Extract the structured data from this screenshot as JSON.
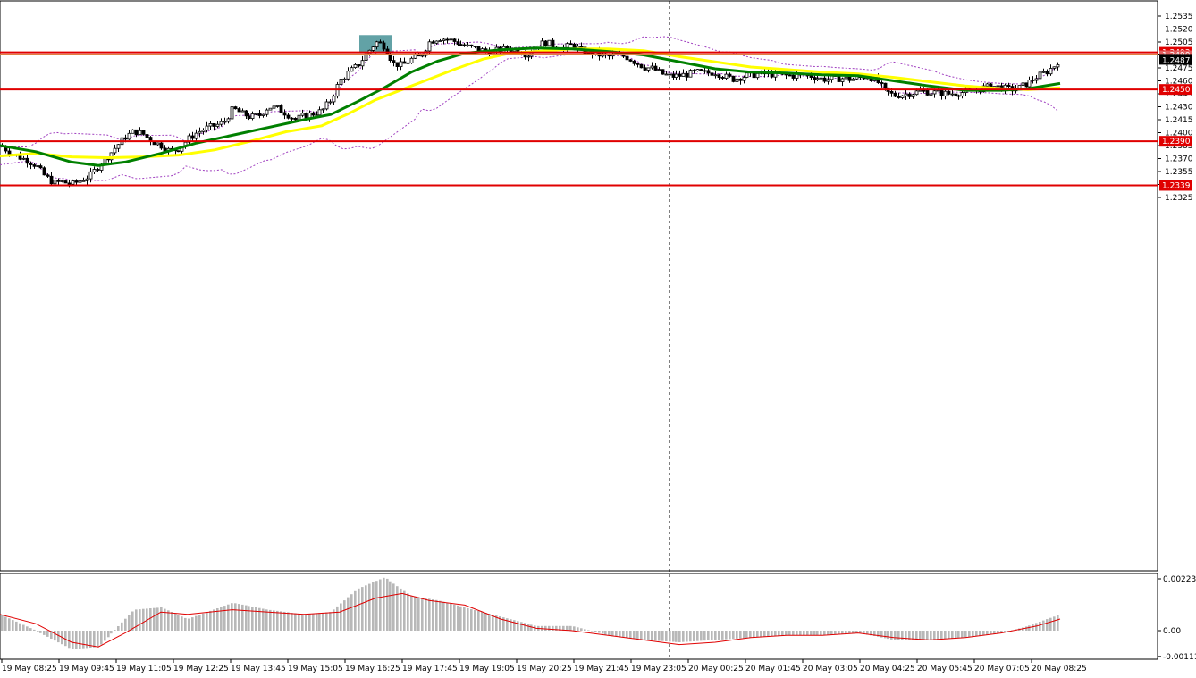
{
  "chart_data": {
    "type": "candlestick",
    "main": {
      "y_ticks": [
        "1.2535",
        "1.2520",
        "1.2505",
        "1.2490",
        "1.2475",
        "1.2460",
        "1.2445",
        "1.2430",
        "1.2415",
        "1.2400",
        "1.2385",
        "1.2370",
        "1.2355",
        "1.2340",
        "1.2325"
      ],
      "price_levels": [
        {
          "value": "1.2493",
          "color": "#e00000"
        },
        {
          "value": "1.2450",
          "color": "#e00000"
        },
        {
          "value": "1.2390",
          "color": "#e00000"
        },
        {
          "value": "1.2339",
          "color": "#e00000"
        }
      ],
      "bid_label": "1.2490",
      "current_price": "1.2487",
      "x_labels": [
        "19 May 08:25",
        "19 May 09:45",
        "19 May 11:05",
        "19 May 12:25",
        "19 May 13:45",
        "19 May 15:05",
        "19 May 16:25",
        "19 May 17:45",
        "19 May 19:05",
        "19 May 20:25",
        "19 May 21:45",
        "19 May 23:05",
        "20 May 00:25",
        "20 May 01:45",
        "20 May 03:05",
        "20 May 04:25",
        "20 May 05:45",
        "20 May 07:05",
        "20 May 08:25"
      ],
      "price_path": [
        [
          0,
          1.2385
        ],
        [
          10,
          1.2378
        ],
        [
          20,
          1.2372
        ],
        [
          30,
          1.2368
        ],
        [
          40,
          1.2362
        ],
        [
          50,
          1.235
        ],
        [
          60,
          1.2342
        ],
        [
          70,
          1.2343
        ],
        [
          80,
          1.234
        ],
        [
          90,
          1.2345
        ],
        [
          100,
          1.235
        ],
        [
          110,
          1.2362
        ],
        [
          120,
          1.2372
        ],
        [
          130,
          1.2384
        ],
        [
          140,
          1.2395
        ],
        [
          150,
          1.2402
        ],
        [
          160,
          1.2398
        ],
        [
          170,
          1.239
        ],
        [
          180,
          1.2385
        ],
        [
          190,
          1.2378
        ],
        [
          200,
          1.2382
        ],
        [
          210,
          1.2392
        ],
        [
          220,
          1.24
        ],
        [
          230,
          1.2405
        ],
        [
          240,
          1.2408
        ],
        [
          250,
          1.2412
        ],
        [
          260,
          1.2428
        ],
        [
          270,
          1.2422
        ],
        [
          280,
          1.2418
        ],
        [
          290,
          1.242
        ],
        [
          300,
          1.243
        ],
        [
          310,
          1.2428
        ],
        [
          320,
          1.2422
        ],
        [
          330,
          1.2415
        ],
        [
          340,
          1.242
        ],
        [
          350,
          1.2422
        ],
        [
          360,
          1.2425
        ],
        [
          370,
          1.2438
        ],
        [
          380,
          1.246
        ],
        [
          390,
          1.247
        ],
        [
          400,
          1.2478
        ],
        [
          410,
          1.2492
        ],
        [
          420,
          1.2505
        ],
        [
          430,
          1.25
        ],
        [
          440,
          1.248
        ],
        [
          450,
          1.2478
        ],
        [
          460,
          1.2485
        ],
        [
          470,
          1.2488
        ],
        [
          480,
          1.2505
        ],
        [
          490,
          1.251
        ],
        [
          500,
          1.2508
        ],
        [
          510,
          1.2505
        ],
        [
          520,
          1.25
        ],
        [
          530,
          1.2498
        ],
        [
          540,
          1.2495
        ],
        [
          550,
          1.2494
        ],
        [
          560,
          1.2496
        ],
        [
          570,
          1.2497
        ],
        [
          580,
          1.2495
        ],
        [
          590,
          1.249
        ],
        [
          600,
          1.25
        ],
        [
          610,
          1.2505
        ],
        [
          620,
          1.25
        ],
        [
          630,
          1.2498
        ],
        [
          640,
          1.2502
        ],
        [
          650,
          1.2495
        ],
        [
          660,
          1.2493
        ],
        [
          670,
          1.249
        ],
        [
          680,
          1.2488
        ],
        [
          690,
          1.249
        ],
        [
          700,
          1.2488
        ],
        [
          710,
          1.2482
        ],
        [
          720,
          1.2476
        ],
        [
          730,
          1.2474
        ],
        [
          740,
          1.2468
        ],
        [
          750,
          1.2465
        ],
        [
          760,
          1.2466
        ],
        [
          770,
          1.2468
        ],
        [
          780,
          1.247
        ],
        [
          790,
          1.2469
        ],
        [
          800,
          1.247
        ],
        [
          810,
          1.2465
        ],
        [
          820,
          1.2462
        ],
        [
          830,
          1.2465
        ],
        [
          840,
          1.2467
        ],
        [
          850,
          1.2468
        ],
        [
          860,
          1.2468
        ],
        [
          870,
          1.2467
        ],
        [
          880,
          1.2466
        ],
        [
          890,
          1.2466
        ],
        [
          900,
          1.2467
        ],
        [
          910,
          1.2465
        ],
        [
          920,
          1.2462
        ],
        [
          930,
          1.2462
        ],
        [
          940,
          1.2463
        ],
        [
          950,
          1.2462
        ],
        [
          960,
          1.2463
        ],
        [
          970,
          1.2466
        ],
        [
          980,
          1.246
        ],
        [
          990,
          1.2448
        ],
        [
          1000,
          1.2443
        ],
        [
          1010,
          1.2444
        ],
        [
          1020,
          1.2446
        ],
        [
          1030,
          1.2448
        ],
        [
          1040,
          1.2447
        ],
        [
          1050,
          1.2446
        ],
        [
          1060,
          1.2445
        ],
        [
          1070,
          1.2446
        ],
        [
          1080,
          1.2447
        ],
        [
          1090,
          1.2449
        ],
        [
          1100,
          1.2452
        ],
        [
          1110,
          1.2454
        ],
        [
          1120,
          1.2452
        ],
        [
          1130,
          1.245
        ],
        [
          1140,
          1.2452
        ],
        [
          1150,
          1.2458
        ],
        [
          1160,
          1.2465
        ],
        [
          1170,
          1.247
        ],
        [
          1180,
          1.2478
        ],
        [
          1186,
          1.2487
        ]
      ],
      "ma_green": [
        [
          0,
          1.2385
        ],
        [
          40,
          1.2378
        ],
        [
          80,
          1.2366
        ],
        [
          110,
          1.2362
        ],
        [
          140,
          1.2366
        ],
        [
          180,
          1.2376
        ],
        [
          220,
          1.2388
        ],
        [
          260,
          1.2397
        ],
        [
          300,
          1.2406
        ],
        [
          340,
          1.2415
        ],
        [
          370,
          1.2421
        ],
        [
          400,
          1.2436
        ],
        [
          430,
          1.2452
        ],
        [
          460,
          1.247
        ],
        [
          490,
          1.2483
        ],
        [
          520,
          1.2492
        ],
        [
          560,
          1.2496
        ],
        [
          600,
          1.2498
        ],
        [
          640,
          1.2497
        ],
        [
          680,
          1.2494
        ],
        [
          720,
          1.249
        ],
        [
          760,
          1.2482
        ],
        [
          800,
          1.2474
        ],
        [
          840,
          1.247
        ],
        [
          880,
          1.2469
        ],
        [
          920,
          1.2467
        ],
        [
          960,
          1.2466
        ],
        [
          1000,
          1.246
        ],
        [
          1040,
          1.2454
        ],
        [
          1080,
          1.2449
        ],
        [
          1120,
          1.2449
        ],
        [
          1150,
          1.2451
        ],
        [
          1186,
          1.2457
        ]
      ],
      "ma_yellow": [
        [
          0,
          1.2373
        ],
        [
          40,
          1.2376
        ],
        [
          80,
          1.2372
        ],
        [
          120,
          1.2371
        ],
        [
          160,
          1.2372
        ],
        [
          200,
          1.2374
        ],
        [
          240,
          1.238
        ],
        [
          280,
          1.239
        ],
        [
          320,
          1.2401
        ],
        [
          360,
          1.2408
        ],
        [
          390,
          1.2422
        ],
        [
          420,
          1.2438
        ],
        [
          450,
          1.245
        ],
        [
          480,
          1.2462
        ],
        [
          510,
          1.2474
        ],
        [
          540,
          1.2485
        ],
        [
          570,
          1.2492
        ],
        [
          600,
          1.2494
        ],
        [
          640,
          1.2497
        ],
        [
          680,
          1.2497
        ],
        [
          720,
          1.2495
        ],
        [
          760,
          1.2488
        ],
        [
          800,
          1.2482
        ],
        [
          840,
          1.2476
        ],
        [
          880,
          1.2473
        ],
        [
          920,
          1.247
        ],
        [
          960,
          1.2468
        ],
        [
          1000,
          1.2464
        ],
        [
          1040,
          1.2459
        ],
        [
          1080,
          1.2454
        ],
        [
          1120,
          1.2451
        ],
        [
          1150,
          1.245
        ],
        [
          1186,
          1.2452
        ]
      ]
    },
    "oscillator": {
      "y_ticks": [
        "0.00223",
        "0.00",
        "-0.00111"
      ],
      "histogram_peaks": [
        [
          0,
          0.0007
        ],
        [
          40,
          0.0
        ],
        [
          80,
          -0.0008
        ],
        [
          110,
          -0.0007
        ],
        [
          150,
          0.0009
        ],
        [
          180,
          0.001
        ],
        [
          210,
          0.0005
        ],
        [
          260,
          0.0012
        ],
        [
          300,
          0.0009
        ],
        [
          340,
          0.0007
        ],
        [
          370,
          0.0008
        ],
        [
          400,
          0.0018
        ],
        [
          430,
          0.0023
        ],
        [
          460,
          0.0015
        ],
        [
          490,
          0.0013
        ],
        [
          520,
          0.001
        ],
        [
          560,
          0.0006
        ],
        [
          600,
          0.0002
        ],
        [
          640,
          0.0002
        ],
        [
          680,
          -0.0002
        ],
        [
          720,
          -0.0004
        ],
        [
          760,
          -0.0005
        ],
        [
          800,
          -0.0004
        ],
        [
          840,
          -0.0003
        ],
        [
          880,
          -0.0002
        ],
        [
          920,
          -0.0002
        ],
        [
          960,
          -0.0001
        ],
        [
          1000,
          -0.0004
        ],
        [
          1040,
          -0.0004
        ],
        [
          1080,
          -0.0003
        ],
        [
          1120,
          -0.0001
        ],
        [
          1150,
          0.0002
        ],
        [
          1186,
          0.0007
        ]
      ],
      "signal_path": [
        [
          0,
          0.0007
        ],
        [
          40,
          0.0003
        ],
        [
          80,
          -0.0005
        ],
        [
          110,
          -0.0007
        ],
        [
          140,
          -0.0001
        ],
        [
          180,
          0.0008
        ],
        [
          210,
          0.0007
        ],
        [
          260,
          0.0009
        ],
        [
          300,
          0.0008
        ],
        [
          340,
          0.0007
        ],
        [
          380,
          0.0008
        ],
        [
          420,
          0.0014
        ],
        [
          450,
          0.0016
        ],
        [
          480,
          0.0013
        ],
        [
          520,
          0.0011
        ],
        [
          560,
          0.0005
        ],
        [
          600,
          0.0001
        ],
        [
          640,
          0.0
        ],
        [
          680,
          -0.0002
        ],
        [
          720,
          -0.0004
        ],
        [
          760,
          -0.0006
        ],
        [
          800,
          -0.0005
        ],
        [
          840,
          -0.0003
        ],
        [
          880,
          -0.0002
        ],
        [
          920,
          -0.0002
        ],
        [
          960,
          -0.0001
        ],
        [
          1000,
          -0.0003
        ],
        [
          1040,
          -0.0004
        ],
        [
          1080,
          -0.0003
        ],
        [
          1120,
          -0.0001
        ],
        [
          1160,
          0.0002
        ],
        [
          1186,
          0.0005
        ]
      ]
    }
  }
}
